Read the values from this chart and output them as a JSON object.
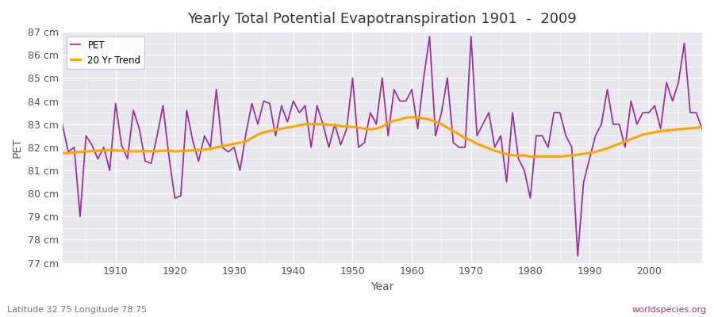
{
  "title": "Yearly Total Potential Evapotranspiration 1901  -  2009",
  "xlabel": "Year",
  "ylabel": "PET",
  "subtitle_left": "Latitude 32.75 Longitude 78.75",
  "subtitle_right": "worldspecies.org",
  "pet_color": "#993399",
  "trend_color": "#FFA500",
  "background_color": "#FFFFFF",
  "plot_bg_color": "#E8E8EE",
  "grid_color": "#FFFFFF",
  "ylim_min": 77,
  "ylim_max": 87,
  "years": [
    1901,
    1902,
    1903,
    1904,
    1905,
    1906,
    1907,
    1908,
    1909,
    1910,
    1911,
    1912,
    1913,
    1914,
    1915,
    1916,
    1917,
    1918,
    1919,
    1920,
    1921,
    1922,
    1923,
    1924,
    1925,
    1926,
    1927,
    1928,
    1929,
    1930,
    1931,
    1932,
    1933,
    1934,
    1935,
    1936,
    1937,
    1938,
    1939,
    1940,
    1941,
    1942,
    1943,
    1944,
    1945,
    1946,
    1947,
    1948,
    1949,
    1950,
    1951,
    1952,
    1953,
    1954,
    1955,
    1956,
    1957,
    1958,
    1959,
    1960,
    1961,
    1962,
    1963,
    1964,
    1965,
    1966,
    1967,
    1968,
    1969,
    1970,
    1971,
    1972,
    1973,
    1974,
    1975,
    1976,
    1977,
    1978,
    1979,
    1980,
    1981,
    1982,
    1983,
    1984,
    1985,
    1986,
    1987,
    1988,
    1989,
    1990,
    1991,
    1992,
    1993,
    1994,
    1995,
    1996,
    1997,
    1998,
    1999,
    2000,
    2001,
    2002,
    2003,
    2004,
    2005,
    2006,
    2007,
    2008,
    2009
  ],
  "pet_values": [
    83.0,
    81.8,
    82.0,
    79.0,
    82.5,
    82.1,
    81.5,
    82.0,
    81.0,
    83.9,
    82.1,
    81.5,
    83.6,
    82.8,
    81.4,
    81.3,
    82.5,
    83.8,
    81.6,
    79.8,
    79.9,
    83.6,
    82.3,
    81.4,
    82.5,
    82.0,
    84.5,
    82.0,
    81.8,
    82.0,
    81.0,
    82.6,
    83.9,
    83.0,
    84.0,
    83.9,
    82.5,
    83.8,
    83.1,
    84.0,
    83.5,
    83.8,
    82.0,
    83.8,
    83.0,
    82.0,
    83.0,
    82.1,
    82.8,
    85.0,
    82.0,
    82.2,
    83.5,
    83.0,
    85.0,
    82.5,
    84.5,
    84.0,
    84.0,
    84.5,
    82.8,
    85.0,
    86.8,
    82.5,
    83.5,
    85.0,
    82.2,
    82.0,
    82.0,
    86.8,
    82.5,
    83.0,
    83.5,
    82.0,
    82.5,
    80.5,
    83.5,
    81.5,
    81.0,
    79.8,
    82.5,
    82.5,
    82.0,
    83.5,
    83.5,
    82.5,
    82.0,
    77.3,
    80.5,
    81.5,
    82.5,
    83.0,
    84.5,
    83.0,
    83.0,
    82.0,
    84.0,
    83.0,
    83.5,
    83.5,
    83.8,
    82.8,
    84.8,
    84.0,
    84.8,
    86.5,
    83.5,
    83.5,
    82.8
  ],
  "trend_years": [
    1901,
    1902,
    1903,
    1904,
    1905,
    1906,
    1907,
    1908,
    1909,
    1910,
    1911,
    1912,
    1913,
    1914,
    1915,
    1916,
    1917,
    1918,
    1919,
    1920,
    1921,
    1922,
    1923,
    1924,
    1925,
    1926,
    1927,
    1928,
    1929,
    1930,
    1931,
    1932,
    1933,
    1934,
    1935,
    1936,
    1937,
    1938,
    1939,
    1940,
    1941,
    1942,
    1943,
    1944,
    1945,
    1946,
    1947,
    1948,
    1949,
    1950,
    1951,
    1952,
    1953,
    1954,
    1955,
    1956,
    1957,
    1958,
    1959,
    1960,
    1961,
    1962,
    1963,
    1964,
    1965,
    1966,
    1967,
    1968,
    1969,
    1970,
    1971,
    1972,
    1973,
    1974,
    1975,
    1976,
    1977,
    1978,
    1979,
    1980,
    1981,
    1982,
    1983,
    1984,
    1985,
    1986,
    1987,
    1988,
    1989,
    1990,
    1991,
    1992,
    1993,
    1994,
    1995,
    1996,
    1997,
    1998,
    1999,
    2000,
    2001,
    2002,
    2003,
    2004,
    2005,
    2006,
    2007,
    2008,
    2009
  ],
  "trend_values": [
    81.75,
    81.75,
    81.78,
    81.8,
    81.82,
    81.83,
    81.85,
    81.87,
    81.88,
    81.87,
    81.85,
    81.83,
    81.82,
    81.83,
    81.83,
    81.83,
    81.83,
    81.85,
    81.85,
    81.82,
    81.83,
    81.85,
    81.87,
    81.88,
    81.9,
    81.92,
    82.0,
    82.05,
    82.1,
    82.15,
    82.2,
    82.25,
    82.4,
    82.55,
    82.65,
    82.7,
    82.75,
    82.8,
    82.85,
    82.9,
    82.95,
    83.0,
    83.0,
    83.0,
    83.0,
    82.98,
    82.95,
    82.92,
    82.9,
    82.88,
    82.85,
    82.8,
    82.78,
    82.8,
    82.9,
    83.05,
    83.15,
    83.2,
    83.28,
    83.3,
    83.28,
    83.25,
    83.2,
    83.1,
    83.0,
    82.85,
    82.7,
    82.55,
    82.4,
    82.3,
    82.15,
    82.05,
    81.95,
    81.85,
    81.78,
    81.7,
    81.65,
    81.65,
    81.65,
    81.6,
    81.6,
    81.6,
    81.6,
    81.6,
    81.6,
    81.62,
    81.65,
    81.68,
    81.72,
    81.75,
    81.8,
    81.88,
    81.95,
    82.05,
    82.15,
    82.25,
    82.35,
    82.45,
    82.55,
    82.6,
    82.65,
    82.7,
    82.73,
    82.75,
    82.78,
    82.8,
    82.82,
    82.85,
    82.88
  ]
}
